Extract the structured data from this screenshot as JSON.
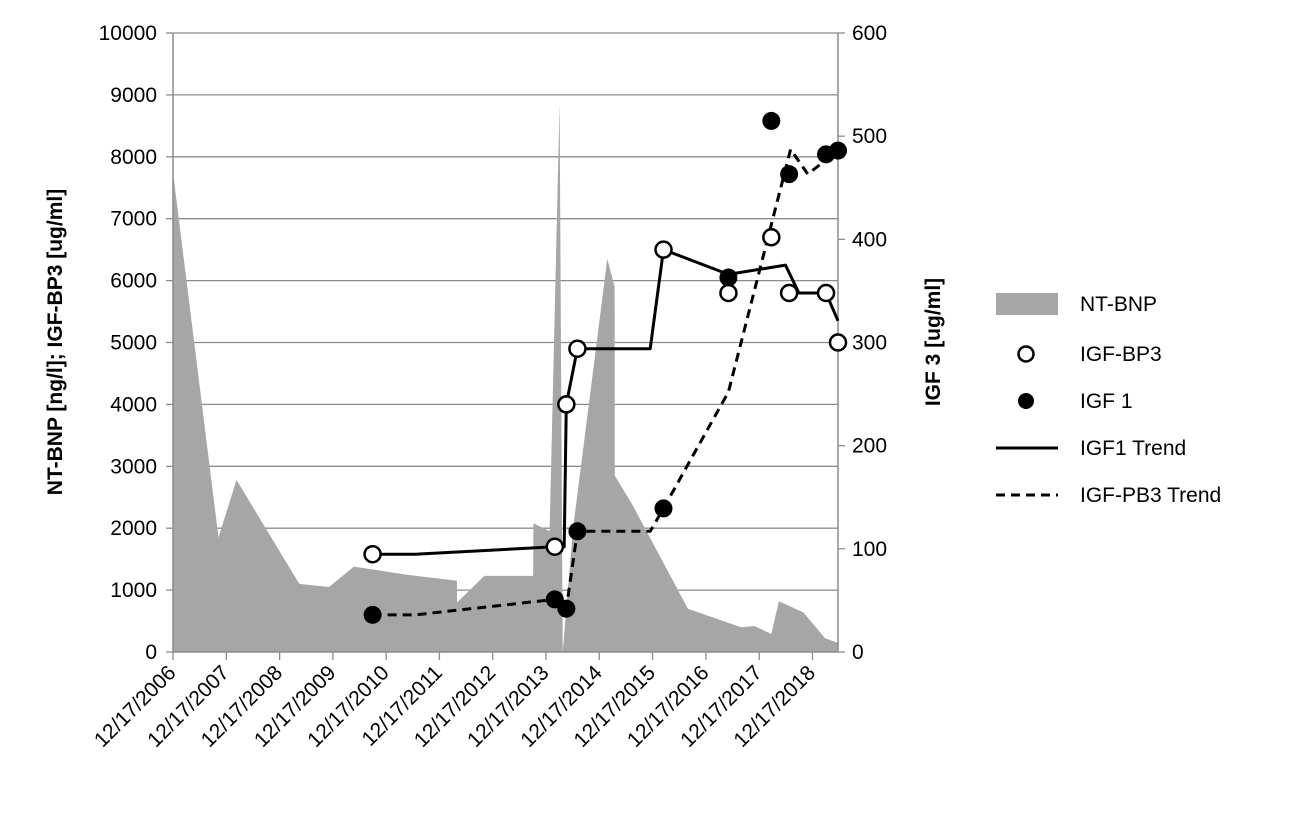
{
  "chart_data": {
    "type": "area",
    "xlabel": "",
    "y_left_label": "NT-BNP [ng/l]; IGF-BP3 [ug/ml]",
    "y_right_label": "IGF 3 [ug/ml]",
    "y_left_lim": [
      0,
      10000
    ],
    "y_left_ticks": [
      0,
      1000,
      2000,
      3000,
      4000,
      5000,
      6000,
      7000,
      8000,
      9000,
      10000
    ],
    "y_right_lim": [
      0,
      600
    ],
    "y_right_ticks": [
      0,
      100,
      200,
      300,
      400,
      500,
      600
    ],
    "x_lim": [
      "2006-12-17",
      "2019-06-10"
    ],
    "x_tick_labels": [
      "12/17/2006",
      "12/17/2007",
      "12/17/2008",
      "12/17/2009",
      "12/17/2010",
      "12/17/2011",
      "12/17/2012",
      "12/17/2013",
      "12/17/2014",
      "12/17/2015",
      "12/17/2016",
      "12/17/2017",
      "12/17/2018"
    ],
    "x_tick_dates": [
      "2006-12-17",
      "2007-12-17",
      "2008-12-17",
      "2009-12-17",
      "2010-12-17",
      "2011-12-17",
      "2012-12-17",
      "2013-12-17",
      "2014-12-17",
      "2015-12-17",
      "2016-12-17",
      "2017-12-17",
      "2018-12-17"
    ],
    "grid": "horizontal",
    "legend_position": "right",
    "series": [
      {
        "name": "NT-BNP",
        "kind": "area",
        "axis": "left",
        "color": "#a6a6a6",
        "points": [
          [
            "2006-12-17",
            7750
          ],
          [
            "2007-10-25",
            1850
          ],
          [
            "2008-02-25",
            2780
          ],
          [
            "2009-05-01",
            1100
          ],
          [
            "2009-11-20",
            1050
          ],
          [
            "2010-05-10",
            1380
          ],
          [
            "2011-05-01",
            1250
          ],
          [
            "2012-04-15",
            1150
          ],
          [
            "2012-04-16",
            800
          ],
          [
            "2012-10-20",
            1230
          ],
          [
            "2013-09-20",
            1230
          ],
          [
            "2013-09-21",
            2080
          ],
          [
            "2014-01-10",
            1950
          ],
          [
            "2014-03-20",
            8870
          ],
          [
            "2014-04-10",
            0
          ],
          [
            "2014-06-20",
            2000
          ],
          [
            "2015-02-10",
            6350
          ],
          [
            "2015-04-01",
            5900
          ],
          [
            "2015-04-02",
            2850
          ],
          [
            "2015-08-01",
            2380
          ],
          [
            "2016-08-15",
            700
          ],
          [
            "2017-08-15",
            400
          ],
          [
            "2017-11-15",
            420
          ],
          [
            "2018-03-10",
            290
          ],
          [
            "2018-05-01",
            820
          ],
          [
            "2018-10-15",
            640
          ],
          [
            "2019-03-15",
            220
          ],
          [
            "2019-06-10",
            150
          ]
        ]
      },
      {
        "name": "IGF-BP3",
        "kind": "scatter-hollow",
        "axis": "left",
        "points": [
          [
            "2010-09-15",
            1580
          ],
          [
            "2014-02-15",
            1700
          ],
          [
            "2014-05-05",
            4000
          ],
          [
            "2014-07-20",
            4900
          ],
          [
            "2016-03-01",
            6500
          ],
          [
            "2017-05-20",
            5800
          ],
          [
            "2018-03-10",
            6700
          ],
          [
            "2018-07-10",
            5800
          ],
          [
            "2019-03-20",
            5800
          ],
          [
            "2019-06-10",
            5000
          ]
        ]
      },
      {
        "name": "IGF 1",
        "kind": "scatter-filled",
        "axis": "left",
        "points": [
          [
            "2010-09-15",
            600
          ],
          [
            "2014-02-15",
            850
          ],
          [
            "2014-05-05",
            700
          ],
          [
            "2014-07-20",
            1950
          ],
          [
            "2016-03-01",
            2320
          ],
          [
            "2017-05-20",
            6050
          ],
          [
            "2018-03-10",
            8580
          ],
          [
            "2018-07-10",
            7720
          ],
          [
            "2019-03-20",
            8040
          ],
          [
            "2019-06-10",
            8100
          ]
        ]
      },
      {
        "name": "IGF1 Trend",
        "kind": "line-solid",
        "axis": "left",
        "points": [
          [
            "2010-09-15",
            1580
          ],
          [
            "2011-07-01",
            1580
          ],
          [
            "2014-02-15",
            1700
          ],
          [
            "2014-04-20",
            1700
          ],
          [
            "2014-05-05",
            4000
          ],
          [
            "2014-07-20",
            4900
          ],
          [
            "2015-12-01",
            4900
          ],
          [
            "2016-03-01",
            6500
          ],
          [
            "2017-05-20",
            6100
          ],
          [
            "2018-06-15",
            6250
          ],
          [
            "2018-09-15",
            5800
          ],
          [
            "2019-03-20",
            5800
          ],
          [
            "2019-06-10",
            5350
          ]
        ]
      },
      {
        "name": "IGF-PB3 Trend",
        "kind": "line-dashed",
        "axis": "left",
        "points": [
          [
            "2010-09-15",
            600
          ],
          [
            "2011-07-01",
            600
          ],
          [
            "2014-02-15",
            850
          ],
          [
            "2014-05-05",
            700
          ],
          [
            "2014-07-20",
            1950
          ],
          [
            "2015-12-01",
            1950
          ],
          [
            "2016-03-01",
            2320
          ],
          [
            "2017-05-20",
            4200
          ],
          [
            "2018-07-20",
            8120
          ],
          [
            "2018-11-15",
            7720
          ],
          [
            "2019-06-10",
            8100
          ]
        ]
      }
    ]
  }
}
